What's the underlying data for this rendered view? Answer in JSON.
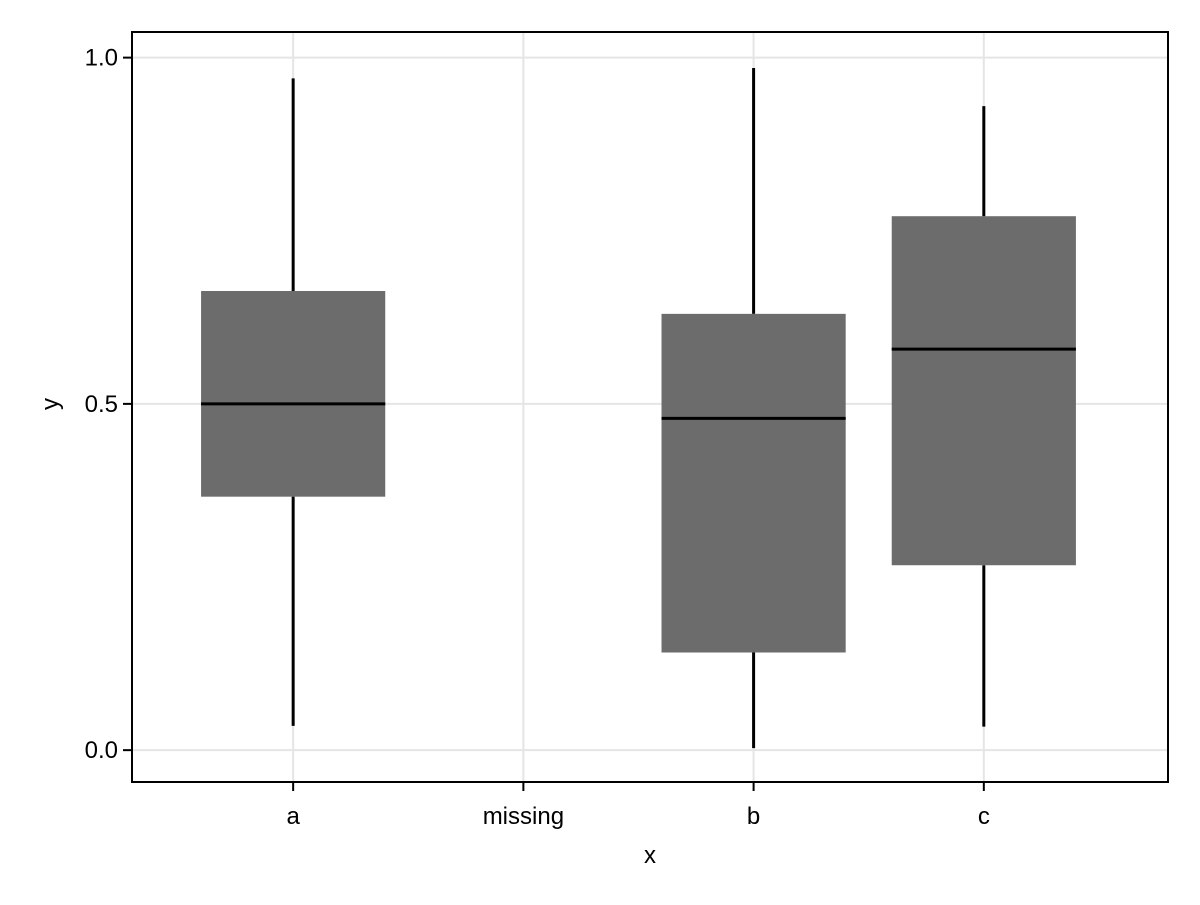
{
  "chart_data": {
    "type": "box",
    "categories": [
      "a",
      "missing",
      "b",
      "c"
    ],
    "xlabel": "x",
    "ylabel": "y",
    "ylim": [
      -0.046,
      1.037
    ],
    "yticks": [
      0.0,
      0.5,
      1.0
    ],
    "ytick_labels": [
      "0.0",
      "0.5",
      "1.0"
    ],
    "grid": true,
    "boxes": [
      {
        "category": "a",
        "min": 0.035,
        "q1": 0.366,
        "median": 0.5,
        "q3": 0.663,
        "max": 0.97
      },
      {
        "category": "b",
        "min": 0.003,
        "q1": 0.141,
        "median": 0.479,
        "q3": 0.63,
        "max": 0.985
      },
      {
        "category": "c",
        "min": 0.034,
        "q1": 0.267,
        "median": 0.579,
        "q3": 0.771,
        "max": 0.93
      }
    ],
    "colors": {
      "box_fill": "#676767",
      "line": "#000000",
      "grid": "#e5e5e5",
      "frame": "#000000"
    }
  }
}
